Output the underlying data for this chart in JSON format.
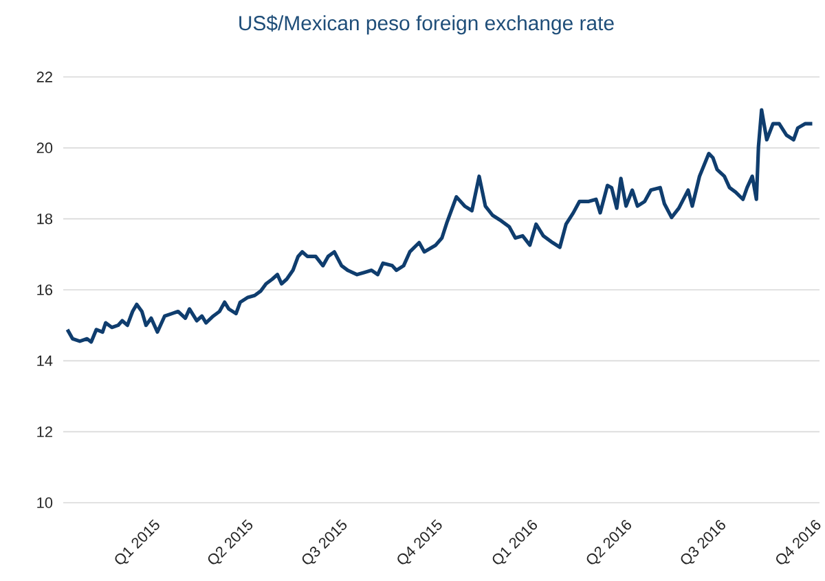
{
  "chart_data": {
    "type": "line",
    "title": "US$/Mexican peso foreign exchange rate",
    "xlim": [
      "2014-10-01",
      "2016-10-01"
    ],
    "xticks": [
      {
        "value": "2015-01-01",
        "label": "Q1 2015"
      },
      {
        "value": "2015-04-01",
        "label": "Q2 2015"
      },
      {
        "value": "2015-07-01",
        "label": "Q3 2015"
      },
      {
        "value": "2015-10-01",
        "label": "Q4 2015"
      },
      {
        "value": "2016-01-01",
        "label": "Q1 2016"
      },
      {
        "value": "2016-04-01",
        "label": "Q2 2016"
      },
      {
        "value": "2016-07-01",
        "label": "Q3 2016"
      },
      {
        "value": "2016-10-01",
        "label": "Q4 2016"
      }
    ],
    "ylim": [
      10,
      22
    ],
    "yticks": [
      10,
      12,
      14,
      16,
      18,
      20,
      22
    ],
    "grid": "y",
    "x": [
      "2014-10-05",
      "2014-10-10",
      "2014-10-17",
      "2014-10-24",
      "2014-10-28",
      "2014-11-02",
      "2014-11-08",
      "2014-11-11",
      "2014-11-17",
      "2014-11-23",
      "2014-11-27",
      "2014-12-02",
      "2014-12-07",
      "2014-12-11",
      "2014-12-16",
      "2014-12-20",
      "2014-12-25",
      "2014-12-31",
      "2015-01-07",
      "2015-01-14",
      "2015-01-20",
      "2015-01-27",
      "2015-01-31",
      "2015-02-07",
      "2015-02-12",
      "2015-02-16",
      "2015-02-23",
      "2015-03-01",
      "2015-03-06",
      "2015-03-10",
      "2015-03-17",
      "2015-03-21",
      "2015-03-28",
      "2015-04-04",
      "2015-04-10",
      "2015-04-15",
      "2015-04-21",
      "2015-04-26",
      "2015-04-30",
      "2015-05-05",
      "2015-05-11",
      "2015-05-16",
      "2015-05-20",
      "2015-05-25",
      "2015-05-29",
      "2015-06-02",
      "2015-06-09",
      "2015-06-14",
      "2015-06-20",
      "2015-06-27",
      "2015-07-03",
      "2015-07-12",
      "2015-07-19",
      "2015-07-26",
      "2015-08-01",
      "2015-08-06",
      "2015-08-15",
      "2015-08-19",
      "2015-08-26",
      "2015-09-01",
      "2015-09-10",
      "2015-09-15",
      "2015-09-26",
      "2015-10-02",
      "2015-10-07",
      "2015-10-16",
      "2015-10-24",
      "2015-10-31",
      "2015-11-07",
      "2015-11-13",
      "2015-11-20",
      "2015-11-27",
      "2015-12-06",
      "2015-12-12",
      "2015-12-19",
      "2015-12-26",
      "2016-01-01",
      "2016-01-08",
      "2016-01-17",
      "2016-01-24",
      "2016-01-30",
      "2016-02-06",
      "2016-02-12",
      "2016-02-21",
      "2016-02-28",
      "2016-03-03",
      "2016-03-10",
      "2016-03-14",
      "2016-03-19",
      "2016-03-23",
      "2016-03-28",
      "2016-04-03",
      "2016-04-08",
      "2016-04-15",
      "2016-04-21",
      "2016-04-30",
      "2016-05-04",
      "2016-05-11",
      "2016-05-18",
      "2016-05-27",
      "2016-05-31",
      "2016-06-07",
      "2016-06-16",
      "2016-06-20",
      "2016-06-24",
      "2016-07-01",
      "2016-07-06",
      "2016-07-12",
      "2016-07-19",
      "2016-07-23",
      "2016-07-28",
      "2016-08-01",
      "2016-08-03",
      "2016-08-06",
      "2016-08-11",
      "2016-08-17",
      "2016-08-23",
      "2016-08-30",
      "2016-09-06",
      "2016-09-10",
      "2016-09-17",
      "2016-09-24"
    ],
    "series": [
      {
        "color": "#0f3d6e",
        "values": [
          14.88,
          14.62,
          14.55,
          14.62,
          14.53,
          14.88,
          14.81,
          15.07,
          14.94,
          15.0,
          15.13,
          15.0,
          15.39,
          15.59,
          15.39,
          15.0,
          15.2,
          14.81,
          15.26,
          15.33,
          15.39,
          15.2,
          15.46,
          15.13,
          15.26,
          15.07,
          15.26,
          15.39,
          15.65,
          15.46,
          15.33,
          15.65,
          15.78,
          15.84,
          15.97,
          16.17,
          16.3,
          16.43,
          16.17,
          16.3,
          16.55,
          16.94,
          17.07,
          16.94,
          16.94,
          16.94,
          16.68,
          16.94,
          17.07,
          16.68,
          16.55,
          16.43,
          16.49,
          16.55,
          16.43,
          16.75,
          16.68,
          16.55,
          16.68,
          17.07,
          17.33,
          17.07,
          17.26,
          17.46,
          17.91,
          18.62,
          18.36,
          18.23,
          19.2,
          18.36,
          18.1,
          17.97,
          17.78,
          17.46,
          17.52,
          17.26,
          17.85,
          17.52,
          17.33,
          17.2,
          17.85,
          18.17,
          18.49,
          18.49,
          18.55,
          18.17,
          18.94,
          18.88,
          18.3,
          19.14,
          18.36,
          18.81,
          18.36,
          18.49,
          18.81,
          18.88,
          18.43,
          18.04,
          18.3,
          18.81,
          18.36,
          19.2,
          19.84,
          19.72,
          19.39,
          19.2,
          18.88,
          18.75,
          18.55,
          18.88,
          19.2,
          18.55,
          20.04,
          21.07,
          20.23,
          20.68,
          20.68,
          20.36,
          20.23,
          20.56,
          20.68,
          20.68
        ]
      }
    ]
  }
}
